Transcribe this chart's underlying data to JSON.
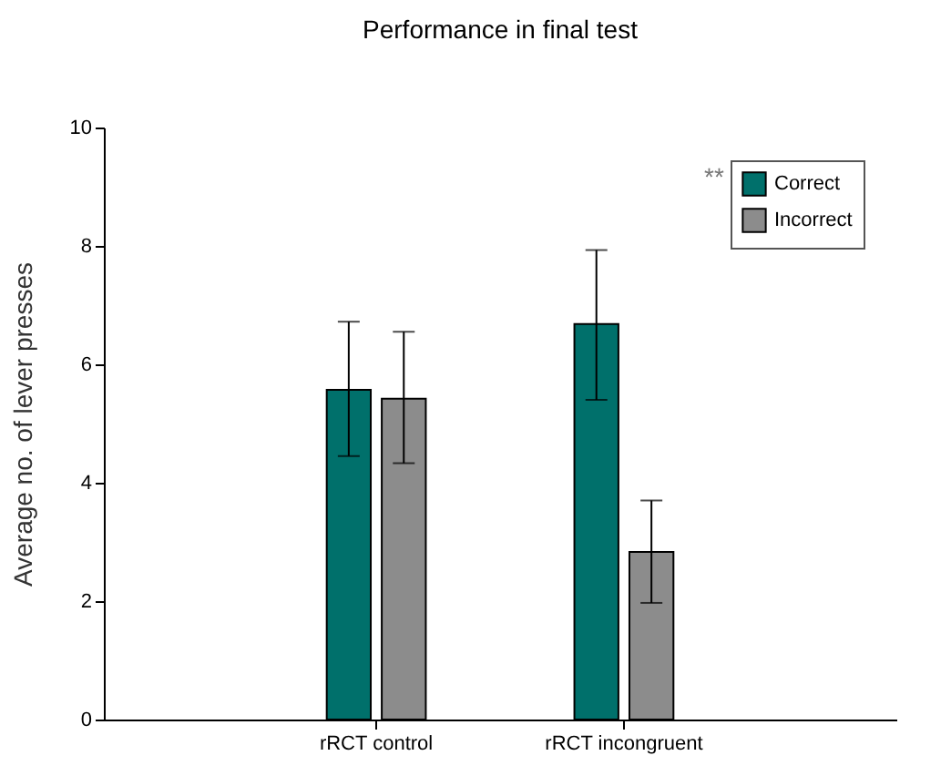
{
  "chart_data": {
    "type": "bar",
    "title": "Performance in final test",
    "ylabel": "Average no. of lever presses",
    "categories": [
      "rRCT control",
      "rRCT incongruent"
    ],
    "series": [
      {
        "name": "Correct",
        "color": "#00706b",
        "values": [
          5.57,
          6.68
        ],
        "errors": [
          [
            4.45,
            6.72
          ],
          [
            5.4,
            7.93
          ]
        ]
      },
      {
        "name": "Incorrect",
        "color": "#8c8c8c",
        "values": [
          5.42,
          2.83
        ],
        "errors": [
          [
            4.33,
            6.55
          ],
          [
            1.97,
            3.7
          ]
        ]
      }
    ],
    "ylim": [
      0,
      10
    ],
    "yticks": [
      0,
      2,
      4,
      6,
      8,
      10
    ],
    "legend": "top right",
    "grid": false,
    "annotations": [
      "**"
    ]
  }
}
